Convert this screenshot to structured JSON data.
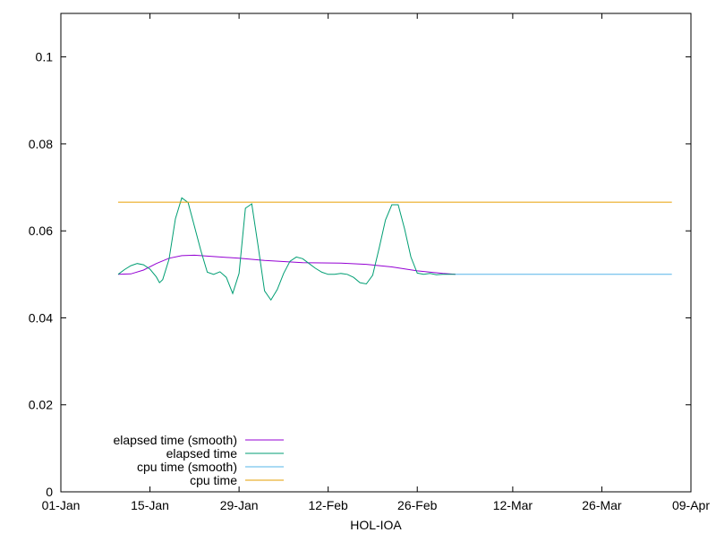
{
  "chart_data": {
    "type": "line",
    "title": "",
    "xlabel": "HOL-IOA",
    "ylabel": "",
    "xlim": [
      "2024-01-01",
      "2024-04-09"
    ],
    "ylim": [
      0,
      0.11
    ],
    "x_tick_labels": [
      "01-Jan",
      "15-Jan",
      "29-Jan",
      "12-Feb",
      "26-Feb",
      "12-Mar",
      "26-Mar",
      "09-Apr"
    ],
    "x_tick_dates": [
      "2024-01-01",
      "2024-01-15",
      "2024-01-29",
      "2024-02-12",
      "2024-02-26",
      "2024-03-12",
      "2024-03-26",
      "2024-04-09"
    ],
    "y_ticks": [
      0,
      0.02,
      0.04,
      0.06,
      0.08,
      0.1
    ],
    "y_tick_labels": [
      "0",
      "0.02",
      "0.04",
      "0.06",
      "0.08",
      "0.1"
    ],
    "grid": false,
    "legend_position": "bottom-left",
    "series": [
      {
        "name": "elapsed time (smooth)",
        "color": "#9400d3",
        "points": [
          [
            "2024-01-10",
            0.05
          ],
          [
            "2024-01-12",
            0.0501
          ],
          [
            "2024-01-14",
            0.051
          ],
          [
            "2024-01-16",
            0.0525
          ],
          [
            "2024-01-18",
            0.0537
          ],
          [
            "2024-01-20",
            0.0543
          ],
          [
            "2024-01-22",
            0.0544
          ],
          [
            "2024-01-25",
            0.0541
          ],
          [
            "2024-01-29",
            0.0537
          ],
          [
            "2024-02-02",
            0.0532
          ],
          [
            "2024-02-08",
            0.0527
          ],
          [
            "2024-02-14",
            0.0526
          ],
          [
            "2024-02-18",
            0.0523
          ],
          [
            "2024-02-22",
            0.0517
          ],
          [
            "2024-02-26",
            0.0508
          ],
          [
            "2024-03-01",
            0.0502
          ],
          [
            "2024-03-03",
            0.05
          ]
        ]
      },
      {
        "name": "elapsed time",
        "color": "#009e73",
        "points": [
          [
            "2024-01-10",
            0.05
          ],
          [
            "2024-01-11",
            0.0511
          ],
          [
            "2024-01-12",
            0.052
          ],
          [
            "2024-01-13",
            0.0525
          ],
          [
            "2024-01-14",
            0.0522
          ],
          [
            "2024-01-15",
            0.0512
          ],
          [
            "2024-01-16",
            0.0494
          ],
          [
            "2024-01-16T12:00:00",
            0.0481
          ],
          [
            "2024-01-17",
            0.0488
          ],
          [
            "2024-01-18",
            0.0535
          ],
          [
            "2024-01-19",
            0.0628
          ],
          [
            "2024-01-20",
            0.0676
          ],
          [
            "2024-01-21",
            0.0665
          ],
          [
            "2024-01-22",
            0.061
          ],
          [
            "2024-01-23",
            0.0555
          ],
          [
            "2024-01-24",
            0.0505
          ],
          [
            "2024-01-25",
            0.05
          ],
          [
            "2024-01-26",
            0.0506
          ],
          [
            "2024-01-27",
            0.0493
          ],
          [
            "2024-01-28",
            0.0456
          ],
          [
            "2024-01-29",
            0.0502
          ],
          [
            "2024-01-30",
            0.0652
          ],
          [
            "2024-01-31",
            0.0662
          ],
          [
            "2024-02-01",
            0.0565
          ],
          [
            "2024-02-02",
            0.0462
          ],
          [
            "2024-02-03",
            0.0441
          ],
          [
            "2024-02-04",
            0.0465
          ],
          [
            "2024-02-05",
            0.0502
          ],
          [
            "2024-02-06",
            0.053
          ],
          [
            "2024-02-07",
            0.054
          ],
          [
            "2024-02-08",
            0.0536
          ],
          [
            "2024-02-09",
            0.0525
          ],
          [
            "2024-02-10",
            0.0514
          ],
          [
            "2024-02-11",
            0.0505
          ],
          [
            "2024-02-12",
            0.05
          ],
          [
            "2024-02-13",
            0.05
          ],
          [
            "2024-02-14",
            0.0502
          ],
          [
            "2024-02-15",
            0.05
          ],
          [
            "2024-02-16",
            0.0493
          ],
          [
            "2024-02-17",
            0.0481
          ],
          [
            "2024-02-18",
            0.0478
          ],
          [
            "2024-02-19",
            0.0498
          ],
          [
            "2024-02-20",
            0.056
          ],
          [
            "2024-02-21",
            0.0625
          ],
          [
            "2024-02-22",
            0.066
          ],
          [
            "2024-02-23",
            0.066
          ],
          [
            "2024-02-24",
            0.0605
          ],
          [
            "2024-02-25",
            0.054
          ],
          [
            "2024-02-26",
            0.0503
          ],
          [
            "2024-02-27",
            0.05
          ],
          [
            "2024-02-28",
            0.0502
          ],
          [
            "2024-02-29",
            0.0499
          ],
          [
            "2024-03-01",
            0.05
          ],
          [
            "2024-03-03",
            0.05
          ]
        ]
      },
      {
        "name": "cpu time (smooth)",
        "color": "#56b4e9",
        "points": [
          [
            "2024-03-03",
            0.05
          ],
          [
            "2024-04-06",
            0.05
          ]
        ]
      },
      {
        "name": "cpu time",
        "color": "#e69f00",
        "points": [
          [
            "2024-01-10",
            0.0666
          ],
          [
            "2024-04-06",
            0.0666
          ]
        ]
      }
    ]
  }
}
